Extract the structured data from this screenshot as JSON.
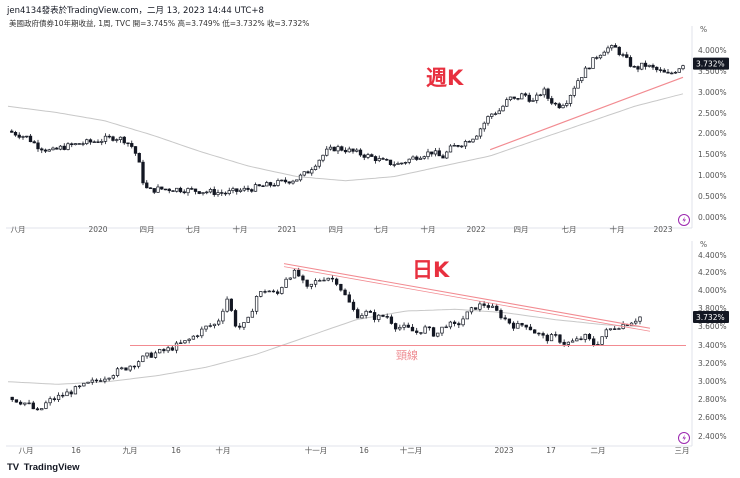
{
  "header": {
    "author": "jen4134發表於TradingView.com，二月 13, 2023 14:44 UTC+8",
    "symbol": "美國政府債券10年期收益, 1周, TVC  開=3.745%  高=3.749%  低=3.732%  收=3.732%"
  },
  "brand": {
    "logo": "TV",
    "name": "TradingView"
  },
  "colors": {
    "up": "#131722",
    "down": "#131722",
    "ma": "#c8c8c8",
    "trend": "#f28b91",
    "label": "#e8303f",
    "axis_text": "#555555"
  },
  "chart_data": [
    {
      "type": "candlestick",
      "name": "weekly",
      "label": "週K",
      "unit": "%",
      "yticks": [
        "4.000%",
        "3.500%",
        "3.000%",
        "2.500%",
        "2.000%",
        "1.500%",
        "1.000%",
        "0.500%",
        "0.000%"
      ],
      "ylim": [
        0.0,
        4.3
      ],
      "xticks": [
        "八月",
        "2020",
        "四月",
        "七月",
        "十月",
        "2021",
        "四月",
        "七月",
        "十月",
        "2022",
        "四月",
        "七月",
        "十月",
        "2023"
      ],
      "last_value": "3.732%",
      "close_path": [
        [
          0,
          2.1
        ],
        [
          4,
          1.95
        ],
        [
          6,
          1.75
        ],
        [
          9,
          1.6
        ],
        [
          11,
          1.7
        ],
        [
          15,
          1.8
        ],
        [
          18,
          1.85
        ],
        [
          22,
          1.95
        ],
        [
          24,
          1.9
        ],
        [
          26,
          1.7
        ],
        [
          27,
          1.4
        ],
        [
          28,
          0.9
        ],
        [
          29,
          0.65
        ],
        [
          31,
          0.7
        ],
        [
          35,
          0.7
        ],
        [
          40,
          0.65
        ],
        [
          45,
          0.6
        ],
        [
          50,
          0.7
        ],
        [
          55,
          0.82
        ],
        [
          60,
          0.95
        ],
        [
          62,
          1.1
        ],
        [
          64,
          1.35
        ],
        [
          66,
          1.6
        ],
        [
          68,
          1.7
        ],
        [
          70,
          1.65
        ],
        [
          73,
          1.55
        ],
        [
          76,
          1.45
        ],
        [
          78,
          1.35
        ],
        [
          81,
          1.3
        ],
        [
          85,
          1.5
        ],
        [
          88,
          1.6
        ],
        [
          90,
          1.45
        ],
        [
          92,
          1.7
        ],
        [
          95,
          1.85
        ],
        [
          97,
          2.0
        ],
        [
          100,
          2.5
        ],
        [
          102,
          2.6
        ],
        [
          104,
          2.9
        ],
        [
          105,
          2.85
        ],
        [
          107,
          3.0
        ],
        [
          109,
          2.8
        ],
        [
          111,
          3.1
        ],
        [
          112,
          2.9
        ],
        [
          114,
          2.7
        ],
        [
          116,
          2.85
        ],
        [
          118,
          3.3
        ],
        [
          120,
          3.6
        ],
        [
          122,
          3.9
        ],
        [
          124,
          4.1
        ],
        [
          126,
          4.1
        ],
        [
          128,
          3.85
        ],
        [
          130,
          3.6
        ],
        [
          132,
          3.7
        ],
        [
          134,
          3.6
        ],
        [
          137,
          3.45
        ],
        [
          139,
          3.62
        ],
        [
          140,
          3.73
        ]
      ],
      "ma_series": [
        [
          0,
          2.7
        ],
        [
          10,
          2.55
        ],
        [
          20,
          2.35
        ],
        [
          30,
          2.0
        ],
        [
          40,
          1.6
        ],
        [
          50,
          1.25
        ],
        [
          60,
          1.0
        ],
        [
          70,
          0.9
        ],
        [
          80,
          1.0
        ],
        [
          90,
          1.25
        ],
        [
          100,
          1.5
        ],
        [
          110,
          1.9
        ],
        [
          120,
          2.3
        ],
        [
          130,
          2.7
        ],
        [
          140,
          3.0
        ]
      ],
      "trendline": {
        "from": [
          100,
          1.65
        ],
        "to": [
          140,
          3.4
        ]
      }
    },
    {
      "type": "candlestick",
      "name": "daily",
      "label": "日K",
      "unit": "%",
      "yticks": [
        "4.400%",
        "4.200%",
        "4.000%",
        "3.800%",
        "3.600%",
        "3.400%",
        "3.200%",
        "3.000%",
        "2.800%",
        "2.600%",
        "2.400%"
      ],
      "ylim": [
        2.35,
        4.45
      ],
      "xticks": [
        "八月",
        "16",
        "九月",
        "16",
        "十月",
        "十一月",
        "16",
        "十二月",
        "2023",
        "17",
        "二月",
        "三月"
      ],
      "last_value": "3.732%",
      "close_path": [
        [
          0,
          2.8
        ],
        [
          4,
          2.72
        ],
        [
          6,
          2.62
        ],
        [
          8,
          2.75
        ],
        [
          12,
          2.85
        ],
        [
          16,
          2.95
        ],
        [
          20,
          3.05
        ],
        [
          24,
          3.15
        ],
        [
          28,
          3.28
        ],
        [
          32,
          3.35
        ],
        [
          36,
          3.45
        ],
        [
          40,
          3.62
        ],
        [
          42,
          3.65
        ],
        [
          44,
          3.95
        ],
        [
          46,
          3.6
        ],
        [
          48,
          3.65
        ],
        [
          50,
          3.98
        ],
        [
          52,
          4.05
        ],
        [
          54,
          3.98
        ],
        [
          56,
          4.2
        ],
        [
          58,
          4.25
        ],
        [
          60,
          4.05
        ],
        [
          62,
          4.15
        ],
        [
          64,
          4.2
        ],
        [
          66,
          4.15
        ],
        [
          68,
          3.95
        ],
        [
          70,
          3.75
        ],
        [
          72,
          3.78
        ],
        [
          74,
          3.72
        ],
        [
          76,
          3.75
        ],
        [
          78,
          3.62
        ],
        [
          80,
          3.6
        ],
        [
          82,
          3.55
        ],
        [
          84,
          3.6
        ],
        [
          86,
          3.52
        ],
        [
          88,
          3.65
        ],
        [
          90,
          3.62
        ],
        [
          92,
          3.75
        ],
        [
          94,
          3.85
        ],
        [
          96,
          3.88
        ],
        [
          98,
          3.8
        ],
        [
          100,
          3.7
        ],
        [
          102,
          3.62
        ],
        [
          104,
          3.65
        ],
        [
          106,
          3.55
        ],
        [
          108,
          3.48
        ],
        [
          110,
          3.5
        ],
        [
          112,
          3.42
        ],
        [
          114,
          3.45
        ],
        [
          116,
          3.5
        ],
        [
          118,
          3.4
        ],
        [
          120,
          3.55
        ],
        [
          122,
          3.62
        ],
        [
          124,
          3.65
        ],
        [
          126,
          3.7
        ],
        [
          127,
          3.73
        ]
      ],
      "ma_series": [
        [
          0,
          2.98
        ],
        [
          10,
          2.95
        ],
        [
          20,
          2.98
        ],
        [
          30,
          3.05
        ],
        [
          40,
          3.15
        ],
        [
          50,
          3.3
        ],
        [
          60,
          3.5
        ],
        [
          70,
          3.7
        ],
        [
          80,
          3.8
        ],
        [
          90,
          3.82
        ],
        [
          100,
          3.78
        ],
        [
          110,
          3.7
        ],
        [
          120,
          3.64
        ],
        [
          127,
          3.62
        ]
      ],
      "neckline": {
        "value": 3.4,
        "label": "頸線"
      },
      "resistance": {
        "from": [
          46,
          4.35
        ],
        "to": [
          128,
          3.6
        ]
      }
    }
  ]
}
